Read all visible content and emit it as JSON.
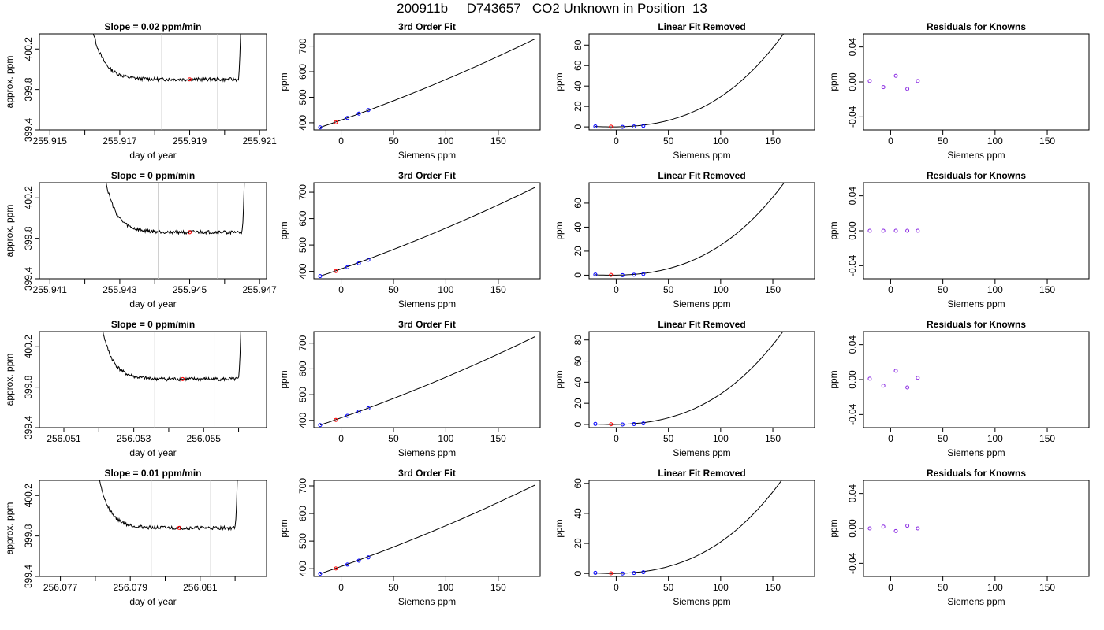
{
  "page": {
    "title": "200911b     D743657   CO2 Unknown in Position  13"
  },
  "chart_data": [
    {
      "type": "line",
      "row": 1,
      "col": 1,
      "title": "Slope =  0.02  ppm/min",
      "xlabel": "day of year",
      "ylabel": "approx. ppm",
      "xlim": [
        255.9147,
        255.9212
      ],
      "ylim": [
        399.4,
        400.35
      ],
      "xticks": [
        255.915,
        255.917,
        255.919,
        255.921
      ],
      "xtick_labels": [
        "255.915",
        "255.917",
        "255.919",
        "255.921"
      ],
      "xminor": [
        255.916,
        255.918,
        255.92
      ],
      "yticks": [
        399.4,
        399.8,
        400.2
      ],
      "ytick_labels": [
        "399.4",
        "399.8",
        "400.2"
      ],
      "vlines": [
        255.9182,
        255.9198
      ],
      "marker": {
        "x": 255.919,
        "y": 399.9
      },
      "trace": {
        "x_start": 255.9159,
        "x_end": 255.9205,
        "level": 399.9,
        "start_y": 401.2,
        "end_y": 401.0,
        "seed": 13
      }
    },
    {
      "type": "line",
      "row": 1,
      "col": 2,
      "title": "3rd Order Fit",
      "xlabel": "Siemens ppm",
      "ylabel": "ppm",
      "xlim": [
        -26,
        190
      ],
      "ylim": [
        372,
        748
      ],
      "xticks": [
        0,
        50,
        100,
        150
      ],
      "xtick_labels": [
        "0",
        "50",
        "100",
        "150"
      ],
      "yticks": [
        400,
        500,
        600,
        700
      ],
      "ytick_labels": [
        "400",
        "500",
        "600",
        "700"
      ],
      "curve": {
        "x0": -20,
        "x1": 185,
        "y0": 382,
        "y1": 728
      },
      "known_points": [
        {
          "x": -20,
          "y": 382
        },
        {
          "x": 6,
          "y": 419
        },
        {
          "x": 17,
          "y": 436
        },
        {
          "x": 26,
          "y": 450
        }
      ],
      "unknown_point": {
        "x": -5,
        "y": 402
      }
    },
    {
      "type": "line",
      "row": 1,
      "col": 3,
      "title": "Linear Fit Removed",
      "xlabel": "Siemens ppm",
      "ylabel": "ppm",
      "xlim": [
        -26,
        190
      ],
      "ylim": [
        -3,
        91
      ],
      "xticks": [
        0,
        50,
        100,
        150
      ],
      "xtick_labels": [
        "0",
        "50",
        "100",
        "150"
      ],
      "yticks": [
        0,
        20,
        40,
        60,
        80
      ],
      "ytick_labels": [
        "0",
        "20",
        "40",
        "60",
        "80"
      ],
      "curve": {
        "a": 0.0016,
        "b": 1.08e-05
      },
      "known_points": [
        {
          "x": -20,
          "y": 0.5
        },
        {
          "x": 6,
          "y": 0.0
        },
        {
          "x": 17,
          "y": 0.4
        },
        {
          "x": 26,
          "y": 1.0
        }
      ],
      "unknown_point": {
        "x": -5,
        "y": 0.2
      }
    },
    {
      "type": "scatter",
      "row": 1,
      "col": 4,
      "title": "Residuals for Knowns",
      "xlabel": "Siemens ppm",
      "ylabel": "ppm",
      "xlim": [
        -26,
        190
      ],
      "ylim": [
        -0.055,
        0.055
      ],
      "xticks": [
        0,
        50,
        100,
        150
      ],
      "xtick_labels": [
        "0",
        "50",
        "100",
        "150"
      ],
      "yticks": [
        -0.04,
        0,
        0.04
      ],
      "ytick_labels": [
        "-0.04",
        "0.00",
        "0.04"
      ],
      "points": [
        {
          "x": -20,
          "y": 0.001
        },
        {
          "x": -7,
          "y": -0.006
        },
        {
          "x": 5,
          "y": 0.007
        },
        {
          "x": 16,
          "y": -0.008
        },
        {
          "x": 26,
          "y": 0.001
        }
      ]
    },
    {
      "type": "line",
      "row": 2,
      "col": 1,
      "title": "Slope =  0  ppm/min",
      "xlabel": "day of year",
      "ylabel": "approx. ppm",
      "xlim": [
        255.9407,
        255.9472
      ],
      "ylim": [
        399.4,
        400.35
      ],
      "xticks": [
        255.941,
        255.943,
        255.945,
        255.947
      ],
      "xtick_labels": [
        "255.941",
        "255.943",
        "255.945",
        "255.947"
      ],
      "xminor": [
        255.942,
        255.944,
        255.946
      ],
      "yticks": [
        399.4,
        399.8,
        400.2
      ],
      "ytick_labels": [
        "399.4",
        "399.8",
        "400.2"
      ],
      "vlines": [
        255.9441,
        255.9458
      ],
      "marker": {
        "x": 255.945,
        "y": 399.86
      },
      "trace": {
        "x_start": 255.9423,
        "x_end": 255.9466,
        "level": 399.86,
        "start_y": 401.2,
        "end_y": 401.0,
        "seed": 27
      }
    },
    {
      "type": "line",
      "row": 2,
      "col": 2,
      "title": "3rd Order Fit",
      "xlabel": "Siemens ppm",
      "ylabel": "ppm",
      "xlim": [
        -26,
        190
      ],
      "ylim": [
        372,
        736
      ],
      "xticks": [
        0,
        50,
        100,
        150
      ],
      "xtick_labels": [
        "0",
        "50",
        "100",
        "150"
      ],
      "yticks": [
        400,
        500,
        600,
        700
      ],
      "ytick_labels": [
        "400",
        "500",
        "600",
        "700"
      ],
      "curve": {
        "x0": -20,
        "x1": 185,
        "y0": 382,
        "y1": 718
      },
      "known_points": [
        {
          "x": -20,
          "y": 382
        },
        {
          "x": 6,
          "y": 416
        },
        {
          "x": 17,
          "y": 431
        },
        {
          "x": 26,
          "y": 444
        }
      ],
      "unknown_point": {
        "x": -5,
        "y": 401
      }
    },
    {
      "type": "line",
      "row": 2,
      "col": 3,
      "title": "Linear Fit Removed",
      "xlabel": "Siemens ppm",
      "ylabel": "ppm",
      "xlim": [
        -26,
        190
      ],
      "ylim": [
        -3,
        77
      ],
      "xticks": [
        0,
        50,
        100,
        150
      ],
      "xtick_labels": [
        "0",
        "50",
        "100",
        "150"
      ],
      "yticks": [
        0,
        20,
        40,
        60
      ],
      "ytick_labels": [
        "0",
        "20",
        "40",
        "60"
      ],
      "curve": {
        "a": 0.0014,
        "b": 8.7e-06
      },
      "known_points": [
        {
          "x": -20,
          "y": 0.5
        },
        {
          "x": 6,
          "y": 0.0
        },
        {
          "x": 17,
          "y": 0.4
        },
        {
          "x": 26,
          "y": 1.0
        }
      ],
      "unknown_point": {
        "x": -5,
        "y": 0.2
      }
    },
    {
      "type": "scatter",
      "row": 2,
      "col": 4,
      "title": "Residuals for Knowns",
      "xlabel": "Siemens ppm",
      "ylabel": "ppm",
      "xlim": [
        -26,
        190
      ],
      "ylim": [
        -0.055,
        0.055
      ],
      "xticks": [
        0,
        50,
        100,
        150
      ],
      "xtick_labels": [
        "0",
        "50",
        "100",
        "150"
      ],
      "yticks": [
        -0.04,
        0,
        0.04
      ],
      "ytick_labels": [
        "-0.04",
        "0.00",
        "0.04"
      ],
      "points": [
        {
          "x": -20,
          "y": 0.0
        },
        {
          "x": -7,
          "y": 0.0
        },
        {
          "x": 5,
          "y": 0.0
        },
        {
          "x": 16,
          "y": 0.0
        },
        {
          "x": 26,
          "y": 0.0
        }
      ]
    },
    {
      "type": "line",
      "row": 3,
      "col": 1,
      "title": "Slope =  0  ppm/min",
      "xlabel": "day of year",
      "ylabel": "approx. ppm",
      "xlim": [
        256.0503,
        256.0568
      ],
      "ylim": [
        399.4,
        400.35
      ],
      "xticks": [
        256.051,
        256.053,
        256.055
      ],
      "xtick_labels": [
        "256.051",
        "256.053",
        "256.055"
      ],
      "xminor": [
        256.052,
        256.054,
        256.056
      ],
      "yticks": [
        399.4,
        399.8,
        400.2
      ],
      "ytick_labels": [
        "399.4",
        "399.8",
        "400.2"
      ],
      "vlines": [
        256.0536,
        256.0553
      ],
      "marker": {
        "x": 256.0544,
        "y": 399.88
      },
      "trace": {
        "x_start": 256.0518,
        "x_end": 256.0561,
        "level": 399.88,
        "start_y": 401.2,
        "end_y": 401.0,
        "seed": 41
      }
    },
    {
      "type": "line",
      "row": 3,
      "col": 2,
      "title": "3rd Order Fit",
      "xlabel": "Siemens ppm",
      "ylabel": "ppm",
      "xlim": [
        -26,
        190
      ],
      "ylim": [
        372,
        745
      ],
      "xticks": [
        0,
        50,
        100,
        150
      ],
      "xtick_labels": [
        "0",
        "50",
        "100",
        "150"
      ],
      "yticks": [
        400,
        500,
        600,
        700
      ],
      "ytick_labels": [
        "400",
        "500",
        "600",
        "700"
      ],
      "curve": {
        "x0": -20,
        "x1": 185,
        "y0": 382,
        "y1": 725
      },
      "known_points": [
        {
          "x": -20,
          "y": 382
        },
        {
          "x": 6,
          "y": 418
        },
        {
          "x": 17,
          "y": 434
        },
        {
          "x": 26,
          "y": 447
        }
      ],
      "unknown_point": {
        "x": -5,
        "y": 402
      }
    },
    {
      "type": "line",
      "row": 3,
      "col": 3,
      "title": "Linear Fit Removed",
      "xlabel": "Siemens ppm",
      "ylabel": "ppm",
      "xlim": [
        -26,
        190
      ],
      "ylim": [
        -3,
        88
      ],
      "xticks": [
        0,
        50,
        100,
        150
      ],
      "xtick_labels": [
        "0",
        "50",
        "100",
        "150"
      ],
      "yticks": [
        0,
        20,
        40,
        60,
        80
      ],
      "ytick_labels": [
        "0",
        "20",
        "40",
        "60",
        "80"
      ],
      "curve": {
        "a": 0.0016,
        "b": 1.03e-05
      },
      "known_points": [
        {
          "x": -20,
          "y": 0.5
        },
        {
          "x": 6,
          "y": 0.0
        },
        {
          "x": 17,
          "y": 0.4
        },
        {
          "x": 26,
          "y": 1.0
        }
      ],
      "unknown_point": {
        "x": -5,
        "y": 0.2
      }
    },
    {
      "type": "scatter",
      "row": 3,
      "col": 4,
      "title": "Residuals for Knowns",
      "xlabel": "Siemens ppm",
      "ylabel": "ppm",
      "xlim": [
        -26,
        190
      ],
      "ylim": [
        -0.055,
        0.055
      ],
      "xticks": [
        0,
        50,
        100,
        150
      ],
      "xtick_labels": [
        "0",
        "50",
        "100",
        "150"
      ],
      "yticks": [
        -0.04,
        0,
        0.04
      ],
      "ytick_labels": [
        "-0.04",
        "0.00",
        "0.04"
      ],
      "points": [
        {
          "x": -20,
          "y": 0.001
        },
        {
          "x": -7,
          "y": -0.007
        },
        {
          "x": 5,
          "y": 0.01
        },
        {
          "x": 16,
          "y": -0.009
        },
        {
          "x": 26,
          "y": 0.002
        }
      ]
    },
    {
      "type": "line",
      "row": 4,
      "col": 1,
      "title": "Slope =  0.01  ppm/min",
      "xlabel": "day of year",
      "ylabel": "approx. ppm",
      "xlim": [
        256.0764,
        256.0829
      ],
      "ylim": [
        399.4,
        400.35
      ],
      "xticks": [
        256.077,
        256.079,
        256.081
      ],
      "xtick_labels": [
        "256.077",
        "256.079",
        "256.081"
      ],
      "xminor": [
        256.078,
        256.08,
        256.082
      ],
      "yticks": [
        399.4,
        399.8,
        400.2
      ],
      "ytick_labels": [
        "399.4",
        "399.8",
        "400.2"
      ],
      "vlines": [
        256.0796,
        256.0813
      ],
      "marker": {
        "x": 256.0804,
        "y": 399.88
      },
      "trace": {
        "x_start": 256.0778,
        "x_end": 256.0821,
        "level": 399.88,
        "start_y": 401.2,
        "end_y": 401.0,
        "seed": 59
      }
    },
    {
      "type": "line",
      "row": 4,
      "col": 2,
      "title": "3rd Order Fit",
      "xlabel": "Siemens ppm",
      "ylabel": "ppm",
      "xlim": [
        -26,
        190
      ],
      "ylim": [
        372,
        720
      ],
      "xticks": [
        0,
        50,
        100,
        150
      ],
      "xtick_labels": [
        "0",
        "50",
        "100",
        "150"
      ],
      "yticks": [
        400,
        500,
        600,
        700
      ],
      "ytick_labels": [
        "400",
        "500",
        "600",
        "700"
      ],
      "curve": {
        "x0": -20,
        "x1": 185,
        "y0": 382,
        "y1": 703
      },
      "known_points": [
        {
          "x": -20,
          "y": 382
        },
        {
          "x": 6,
          "y": 415
        },
        {
          "x": 17,
          "y": 429
        },
        {
          "x": 26,
          "y": 441
        }
      ],
      "unknown_point": {
        "x": -5,
        "y": 401
      }
    },
    {
      "type": "line",
      "row": 4,
      "col": 3,
      "title": "Linear Fit Removed",
      "xlabel": "Siemens ppm",
      "ylabel": "ppm",
      "xlim": [
        -26,
        190
      ],
      "ylim": [
        -2,
        62
      ],
      "xticks": [
        0,
        50,
        100,
        150
      ],
      "xtick_labels": [
        "0",
        "50",
        "100",
        "150"
      ],
      "yticks": [
        0,
        20,
        40,
        60
      ],
      "ytick_labels": [
        "0",
        "20",
        "40",
        "60"
      ],
      "curve": {
        "a": 0.0012,
        "b": 7.1e-06
      },
      "known_points": [
        {
          "x": -20,
          "y": 0.4
        },
        {
          "x": 6,
          "y": 0.0
        },
        {
          "x": 17,
          "y": 0.3
        },
        {
          "x": 26,
          "y": 0.8
        }
      ],
      "unknown_point": {
        "x": -5,
        "y": 0.1
      }
    },
    {
      "type": "scatter",
      "row": 4,
      "col": 4,
      "title": "Residuals for Knowns",
      "xlabel": "Siemens ppm",
      "ylabel": "ppm",
      "xlim": [
        -26,
        190
      ],
      "ylim": [
        -0.055,
        0.055
      ],
      "xticks": [
        0,
        50,
        100,
        150
      ],
      "xtick_labels": [
        "0",
        "50",
        "100",
        "150"
      ],
      "yticks": [
        -0.04,
        0,
        0.04
      ],
      "ytick_labels": [
        "-0.04",
        "0.00",
        "0.04"
      ],
      "points": [
        {
          "x": -20,
          "y": 0.0
        },
        {
          "x": -7,
          "y": 0.002
        },
        {
          "x": 5,
          "y": -0.003
        },
        {
          "x": 16,
          "y": 0.003
        },
        {
          "x": 26,
          "y": 0.0
        }
      ]
    }
  ],
  "colors": {
    "axis": "#000000",
    "trace": "#000000",
    "vline": "#c8c8c8",
    "unknown_marker": "#ff0000",
    "known_marker": "#0000ff",
    "residual_marker": "#8a2be2"
  }
}
